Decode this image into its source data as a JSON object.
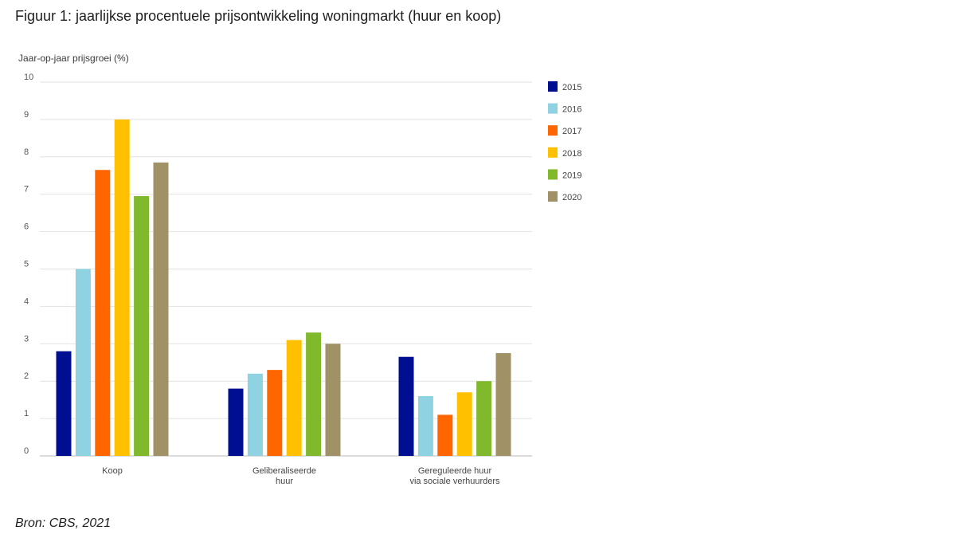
{
  "title": "Figuur 1: jaarlijkse procentuele prijsontwikkeling woningmarkt (huur en koop)",
  "source": "Bron: CBS, 2021",
  "chart_data": {
    "type": "bar",
    "title": "Figuur 1: jaarlijkse procentuele prijsontwikkeling woningmarkt (huur en koop)",
    "ylabel": "Jaar-op-jaar prijsgroei (%)",
    "xlabel": "",
    "ylim": [
      0,
      10
    ],
    "yticks": [
      0,
      1,
      2,
      3,
      4,
      5,
      6,
      7,
      8,
      9,
      10
    ],
    "grid": true,
    "legend_position": "right",
    "categories": [
      [
        "Koop"
      ],
      [
        "Geliberaliseerde",
        "huur"
      ],
      [
        "Gereguleerde huur",
        "via sociale verhuurders"
      ]
    ],
    "series": [
      {
        "name": "2015",
        "color": "#000e92",
        "values": [
          2.8,
          1.8,
          2.65
        ]
      },
      {
        "name": "2016",
        "color": "#8fd3e3",
        "values": [
          5.0,
          2.2,
          1.6
        ]
      },
      {
        "name": "2017",
        "color": "#ff6600",
        "values": [
          7.65,
          2.3,
          1.1
        ]
      },
      {
        "name": "2018",
        "color": "#ffc000",
        "values": [
          9.0,
          3.1,
          1.7
        ]
      },
      {
        "name": "2019",
        "color": "#80b92b",
        "values": [
          6.95,
          3.3,
          2.0
        ]
      },
      {
        "name": "2020",
        "color": "#a09266",
        "values": [
          7.85,
          3.0,
          2.75
        ]
      }
    ]
  }
}
